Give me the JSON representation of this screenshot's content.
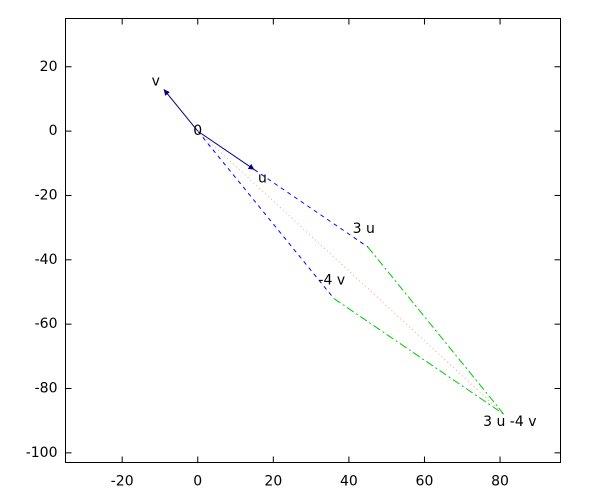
{
  "chart_data": {
    "type": "vector",
    "xlim": [
      -35,
      96
    ],
    "ylim": [
      -103,
      35
    ],
    "xticks": [
      -20,
      0,
      20,
      40,
      60,
      80
    ],
    "yticks": [
      -100,
      -80,
      -60,
      -40,
      -20,
      0,
      20
    ],
    "grid": false,
    "points": [
      {
        "label": "0",
        "x": 0,
        "y": 0
      },
      {
        "label": "u",
        "x": 15,
        "y": -12
      },
      {
        "label": "v",
        "x": -9,
        "y": 13
      },
      {
        "label": "3 u",
        "x": 45,
        "y": -36
      },
      {
        "label": "-4 v",
        "x": 36,
        "y": -52
      },
      {
        "label": "3 u -4 v",
        "x": 81,
        "y": -88
      }
    ],
    "segments": [
      {
        "from": 0,
        "to": 1,
        "color": "#000080",
        "style": "solid"
      },
      {
        "from": 0,
        "to": 2,
        "color": "#000080",
        "style": "solid"
      },
      {
        "from": 1,
        "to": 3,
        "color": "#0000ff",
        "style": "dashed"
      },
      {
        "from": 0,
        "to": 4,
        "color": "#0000ff",
        "style": "dashed"
      },
      {
        "from": 3,
        "to": 5,
        "color": "#00cc00",
        "style": "dashdot"
      },
      {
        "from": 4,
        "to": 5,
        "color": "#00cc00",
        "style": "dashdot"
      },
      {
        "from": 0,
        "to": 5,
        "color": "#ff9999",
        "style": "dotted"
      }
    ]
  }
}
